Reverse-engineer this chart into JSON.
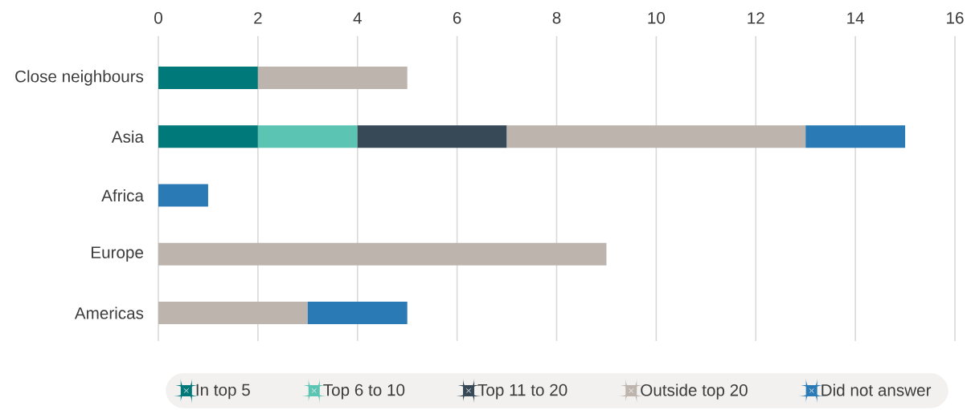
{
  "chart_data": {
    "type": "bar",
    "orientation": "horizontal",
    "stacked": true,
    "categories": [
      "Close neighbours",
      "Asia",
      "Africa",
      "Europe",
      "Americas"
    ],
    "series": [
      {
        "name": "In top 5",
        "color": "#00797a",
        "values": [
          2,
          2,
          null,
          null,
          null
        ]
      },
      {
        "name": "Top 6 to 10",
        "color": "#5cc4b3",
        "values": [
          null,
          2,
          null,
          null,
          null
        ]
      },
      {
        "name": "Top 11 to 20",
        "color": "#374957",
        "values": [
          null,
          3,
          null,
          null,
          null
        ]
      },
      {
        "name": "Outside top 20",
        "color": "#bdb4ad",
        "values": [
          3,
          6,
          null,
          9,
          3
        ]
      },
      {
        "name": "Did not answer",
        "color": "#2a7bb5",
        "values": [
          null,
          2,
          1,
          null,
          2
        ]
      }
    ],
    "xlim": [
      0,
      16
    ],
    "xticks": [
      0,
      2,
      4,
      6,
      8,
      10,
      12,
      14,
      16
    ],
    "grid": "x",
    "legend": "bottom"
  }
}
